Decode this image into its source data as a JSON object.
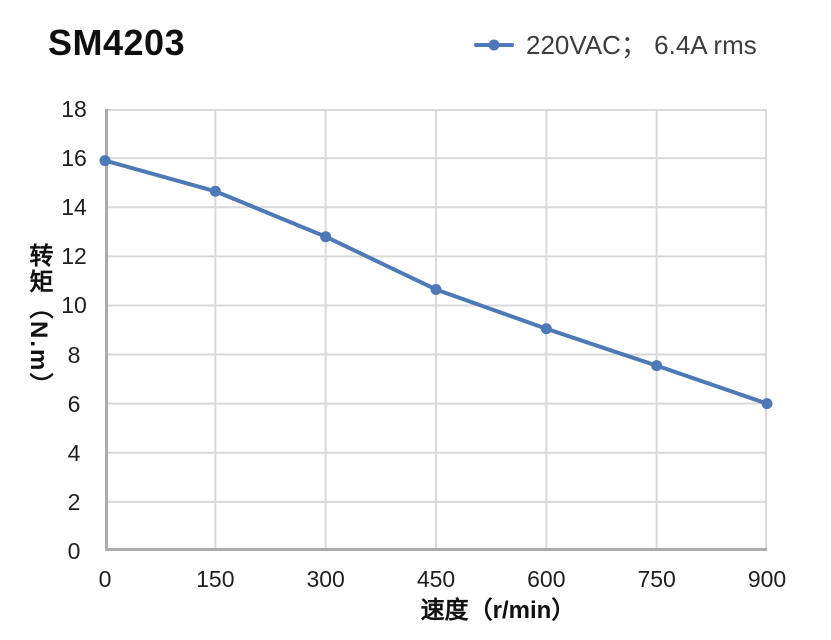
{
  "header": {
    "title": "SM4203"
  },
  "legend": {
    "label": "220VAC； 6.4A rms",
    "marker": "line-with-dot"
  },
  "axes": {
    "x_title": "速度（r/min）",
    "y_title": "转矩（N.m）"
  },
  "colors": {
    "series_blue": "#4d79b6",
    "grid_line": "#d9d9d9",
    "axis_line": "#acacb0",
    "title_text": "#0f0f0f",
    "tick_text": "#1f1f1f",
    "legend_text": "#3d3d3d",
    "background": "#ffffff"
  },
  "chart_data": {
    "type": "line",
    "title": "SM4203",
    "x": [
      0,
      150,
      300,
      450,
      600,
      750,
      900
    ],
    "series": [
      {
        "name": "220VAC； 6.4A rms",
        "values": [
          15.9,
          14.65,
          12.8,
          10.65,
          9.05,
          7.55,
          6.0
        ],
        "color": "#4d79b6",
        "marker": "circle"
      }
    ],
    "xlabel": "速度（r/min）",
    "ylabel": "转矩（N.m）",
    "xlim": [
      0,
      900
    ],
    "ylim": [
      0,
      18
    ],
    "x_ticks": [
      0,
      150,
      300,
      450,
      600,
      750,
      900
    ],
    "y_ticks": [
      0,
      2,
      4,
      6,
      8,
      10,
      12,
      14,
      16,
      18
    ],
    "grid": true,
    "grid_on": "both",
    "legend_position": "top-right",
    "plot_border": "grid-colored top/right, gray axes left/bottom"
  }
}
